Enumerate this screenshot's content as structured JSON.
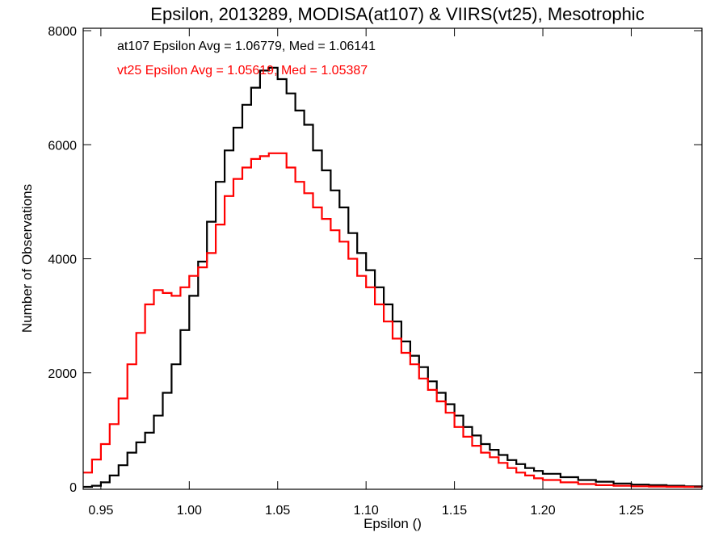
{
  "chart_data": {
    "type": "line",
    "title": "Epsilon, 2013289, MODISA(at107) & VIIRS(vt25), Mesotrophic",
    "xlabel": "Epsilon ()",
    "ylabel": "Number of Observations",
    "xlim": [
      0.94,
      1.29
    ],
    "ylim": [
      0,
      8000
    ],
    "xticks": [
      0.95,
      1.0,
      1.05,
      1.1,
      1.15,
      1.2,
      1.25
    ],
    "xtick_labels": [
      "0.95",
      "1.00",
      "1.05",
      "1.10",
      "1.15",
      "1.20",
      "1.25"
    ],
    "yticks": [
      0,
      2000,
      4000,
      6000,
      8000
    ],
    "ytick_labels": [
      "0",
      "2000",
      "4000",
      "6000",
      "8000"
    ],
    "step": true,
    "grid": false,
    "annotations": [
      {
        "text": "at107 Epsilon Avg = 1.06779, Med = 1.06141",
        "color": "#000000"
      },
      {
        "text": "vt25 Epsilon Avg = 1.05619, Med = 1.05387",
        "color": "#ff0000"
      }
    ],
    "series": [
      {
        "color": "#000000",
        "x": [
          0.94,
          0.945,
          0.95,
          0.955,
          0.96,
          0.965,
          0.97,
          0.975,
          0.98,
          0.985,
          0.99,
          0.995,
          1.0,
          1.005,
          1.01,
          1.015,
          1.02,
          1.025,
          1.03,
          1.035,
          1.04,
          1.045,
          1.05,
          1.055,
          1.06,
          1.065,
          1.07,
          1.075,
          1.08,
          1.085,
          1.09,
          1.095,
          1.1,
          1.105,
          1.11,
          1.115,
          1.12,
          1.125,
          1.13,
          1.135,
          1.14,
          1.145,
          1.15,
          1.155,
          1.16,
          1.165,
          1.17,
          1.175,
          1.18,
          1.185,
          1.19,
          1.195,
          1.2,
          1.21,
          1.22,
          1.23,
          1.24,
          1.25,
          1.26,
          1.27,
          1.28,
          1.29
        ],
        "values": [
          0,
          20,
          80,
          200,
          380,
          600,
          780,
          950,
          1250,
          1650,
          2150,
          2750,
          3350,
          3950,
          4650,
          5350,
          5900,
          6300,
          6700,
          7000,
          7300,
          7350,
          7150,
          6900,
          6600,
          6350,
          5900,
          5550,
          5200,
          4900,
          4450,
          4100,
          3800,
          3500,
          3200,
          2900,
          2550,
          2300,
          2100,
          1850,
          1650,
          1450,
          1250,
          1050,
          900,
          750,
          650,
          560,
          470,
          400,
          330,
          280,
          230,
          170,
          120,
          90,
          60,
          40,
          30,
          20,
          10,
          0
        ]
      },
      {
        "color": "#ff0000",
        "x": [
          0.94,
          0.945,
          0.95,
          0.955,
          0.96,
          0.965,
          0.97,
          0.975,
          0.98,
          0.985,
          0.99,
          0.995,
          1.0,
          1.005,
          1.01,
          1.015,
          1.02,
          1.025,
          1.03,
          1.035,
          1.04,
          1.045,
          1.05,
          1.055,
          1.06,
          1.065,
          1.07,
          1.075,
          1.08,
          1.085,
          1.09,
          1.095,
          1.1,
          1.105,
          1.11,
          1.115,
          1.12,
          1.125,
          1.13,
          1.135,
          1.14,
          1.145,
          1.15,
          1.155,
          1.16,
          1.165,
          1.17,
          1.175,
          1.18,
          1.185,
          1.19,
          1.195,
          1.2,
          1.21,
          1.22,
          1.23,
          1.24,
          1.25,
          1.26,
          1.27,
          1.28,
          1.29
        ],
        "values": [
          250,
          480,
          750,
          1100,
          1550,
          2150,
          2700,
          3200,
          3450,
          3400,
          3350,
          3500,
          3700,
          3850,
          4100,
          4600,
          5100,
          5400,
          5600,
          5750,
          5800,
          5850,
          5850,
          5600,
          5350,
          5150,
          4900,
          4700,
          4500,
          4300,
          4000,
          3700,
          3500,
          3200,
          2900,
          2600,
          2350,
          2150,
          1900,
          1700,
          1500,
          1300,
          1050,
          880,
          720,
          600,
          520,
          420,
          330,
          250,
          200,
          150,
          120,
          80,
          50,
          30,
          20,
          10,
          5,
          2,
          0,
          0
        ]
      }
    ]
  }
}
